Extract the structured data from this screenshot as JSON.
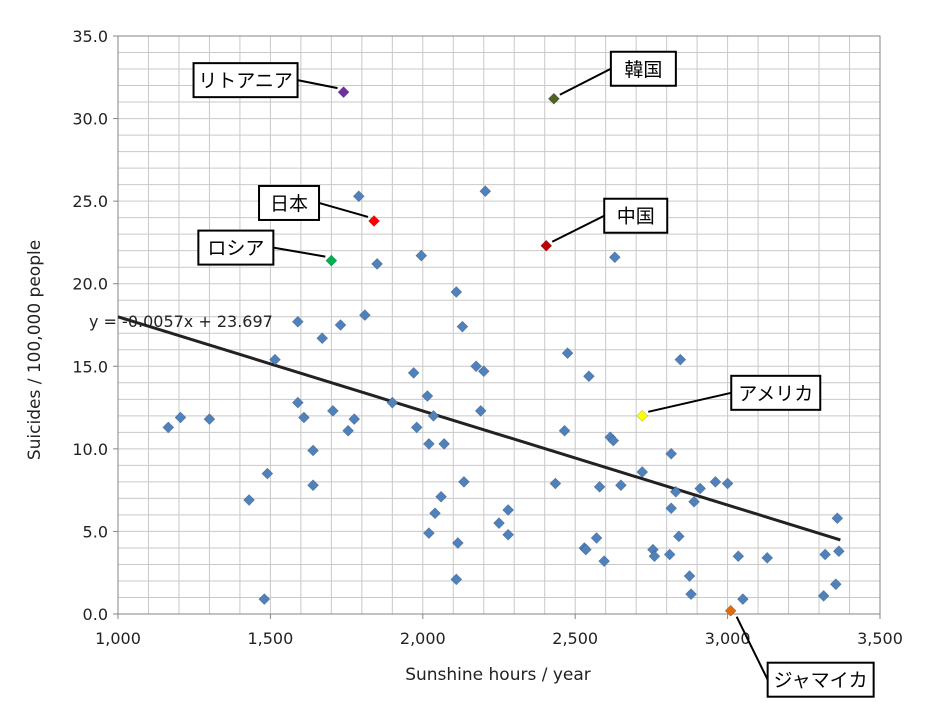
{
  "chart_data": {
    "type": "scatter",
    "title": "",
    "xlabel": "Sunshine hours / year",
    "ylabel": "Suicides / 100,000 people",
    "xlim": [
      1000,
      3500
    ],
    "ylim": [
      0,
      35
    ],
    "x_ticks": [
      1000,
      1500,
      2000,
      2500,
      3000,
      3500
    ],
    "x_tick_labels": [
      "1,000",
      "1,500",
      "2,000",
      "2,500",
      "3,000",
      "3,500"
    ],
    "y_ticks": [
      0,
      5,
      10,
      15,
      20,
      25,
      30,
      35
    ],
    "y_tick_labels": [
      "0.0",
      "5.0",
      "10.0",
      "15.0",
      "20.0",
      "25.0",
      "30.0",
      "35.0"
    ],
    "grid": true,
    "default_color": "#4f81bd",
    "trendline": {
      "slope": -0.0057,
      "intercept": 23.697,
      "x_range": [
        1000,
        3370
      ],
      "label": "y = -0.0057x + 23.697",
      "color": "#222222"
    },
    "highlighted": [
      {
        "label": "リトアニア",
        "x": 1740,
        "y": 31.6,
        "color": "#7030a0"
      },
      {
        "label": "韓国",
        "x": 2430,
        "y": 31.2,
        "color": "#4f6228"
      },
      {
        "label": "日本",
        "x": 1840,
        "y": 23.8,
        "color": "#ff0000"
      },
      {
        "label": "中国",
        "x": 2405,
        "y": 22.3,
        "color": "#c00000"
      },
      {
        "label": "ロシア",
        "x": 1700,
        "y": 21.4,
        "color": "#00b050"
      },
      {
        "label": "アメリカ",
        "x": 2720,
        "y": 12.0,
        "color": "#ffff00"
      },
      {
        "label": "ジャマイカ",
        "x": 3010,
        "y": 0.2,
        "color": "#e36c09"
      }
    ],
    "points": [
      {
        "x": 1165,
        "y": 11.3
      },
      {
        "x": 1205,
        "y": 11.9
      },
      {
        "x": 1300,
        "y": 11.8
      },
      {
        "x": 1430,
        "y": 6.9
      },
      {
        "x": 1480,
        "y": 0.9
      },
      {
        "x": 1490,
        "y": 8.5
      },
      {
        "x": 1515,
        "y": 15.4
      },
      {
        "x": 1590,
        "y": 17.7
      },
      {
        "x": 1590,
        "y": 12.8
      },
      {
        "x": 1610,
        "y": 11.9
      },
      {
        "x": 1640,
        "y": 9.9
      },
      {
        "x": 1640,
        "y": 7.8
      },
      {
        "x": 1670,
        "y": 16.7
      },
      {
        "x": 1705,
        "y": 12.3
      },
      {
        "x": 1730,
        "y": 17.5
      },
      {
        "x": 1755,
        "y": 11.1
      },
      {
        "x": 1775,
        "y": 11.8
      },
      {
        "x": 1790,
        "y": 25.3
      },
      {
        "x": 1810,
        "y": 18.1
      },
      {
        "x": 1850,
        "y": 21.2
      },
      {
        "x": 1900,
        "y": 12.8
      },
      {
        "x": 1970,
        "y": 14.6
      },
      {
        "x": 1980,
        "y": 11.3
      },
      {
        "x": 1995,
        "y": 21.7
      },
      {
        "x": 2015,
        "y": 13.2
      },
      {
        "x": 2020,
        "y": 10.3
      },
      {
        "x": 2020,
        "y": 4.9
      },
      {
        "x": 2035,
        "y": 12.0
      },
      {
        "x": 2040,
        "y": 6.1
      },
      {
        "x": 2060,
        "y": 7.1
      },
      {
        "x": 2070,
        "y": 10.3
      },
      {
        "x": 2110,
        "y": 19.5
      },
      {
        "x": 2115,
        "y": 4.3
      },
      {
        "x": 2110,
        "y": 2.1
      },
      {
        "x": 2130,
        "y": 17.4
      },
      {
        "x": 2135,
        "y": 8.0
      },
      {
        "x": 2175,
        "y": 15.0
      },
      {
        "x": 2190,
        "y": 12.3
      },
      {
        "x": 2200,
        "y": 14.7
      },
      {
        "x": 2205,
        "y": 25.6
      },
      {
        "x": 2250,
        "y": 5.5
      },
      {
        "x": 2280,
        "y": 6.3
      },
      {
        "x": 2280,
        "y": 4.8
      },
      {
        "x": 2435,
        "y": 7.9
      },
      {
        "x": 2465,
        "y": 11.1
      },
      {
        "x": 2475,
        "y": 15.8
      },
      {
        "x": 2530,
        "y": 4.0
      },
      {
        "x": 2535,
        "y": 3.9
      },
      {
        "x": 2545,
        "y": 14.4
      },
      {
        "x": 2570,
        "y": 4.6
      },
      {
        "x": 2580,
        "y": 7.7
      },
      {
        "x": 2595,
        "y": 3.2
      },
      {
        "x": 2615,
        "y": 10.7
      },
      {
        "x": 2625,
        "y": 10.5
      },
      {
        "x": 2630,
        "y": 21.6
      },
      {
        "x": 2650,
        "y": 7.8
      },
      {
        "x": 2720,
        "y": 8.6
      },
      {
        "x": 2755,
        "y": 3.9
      },
      {
        "x": 2760,
        "y": 3.5
      },
      {
        "x": 2810,
        "y": 3.6
      },
      {
        "x": 2815,
        "y": 9.7
      },
      {
        "x": 2815,
        "y": 6.4
      },
      {
        "x": 2830,
        "y": 7.4
      },
      {
        "x": 2840,
        "y": 4.7
      },
      {
        "x": 2845,
        "y": 15.4
      },
      {
        "x": 2875,
        "y": 2.3
      },
      {
        "x": 2880,
        "y": 1.2
      },
      {
        "x": 2890,
        "y": 6.8
      },
      {
        "x": 2910,
        "y": 7.6
      },
      {
        "x": 2960,
        "y": 8.0
      },
      {
        "x": 3000,
        "y": 7.9
      },
      {
        "x": 3035,
        "y": 3.5
      },
      {
        "x": 3050,
        "y": 0.9
      },
      {
        "x": 3130,
        "y": 3.4
      },
      {
        "x": 3315,
        "y": 1.1
      },
      {
        "x": 3320,
        "y": 3.6
      },
      {
        "x": 3355,
        "y": 1.8
      },
      {
        "x": 3360,
        "y": 5.8
      },
      {
        "x": 3365,
        "y": 3.8
      }
    ]
  }
}
